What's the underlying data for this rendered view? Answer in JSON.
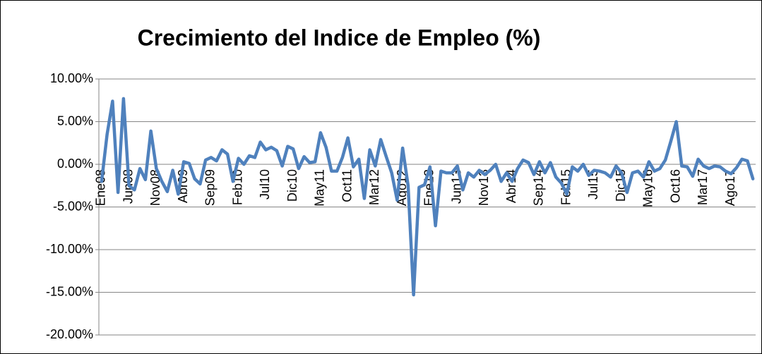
{
  "chart_data": {
    "type": "line",
    "title": "Crecimiento del Indice de Empleo (%)",
    "categories": [
      "Ene08",
      null,
      null,
      null,
      null,
      "Jun08",
      null,
      null,
      null,
      null,
      "Nov08",
      null,
      null,
      null,
      null,
      "Abr09",
      null,
      null,
      null,
      null,
      "Sep09",
      null,
      null,
      null,
      null,
      "Feb10",
      null,
      null,
      null,
      null,
      "Jul10",
      null,
      null,
      null,
      null,
      "Dic10",
      null,
      null,
      null,
      null,
      "May11",
      null,
      null,
      null,
      null,
      "Oct11",
      null,
      null,
      null,
      null,
      "Mar12",
      null,
      null,
      null,
      null,
      "Ago12",
      null,
      null,
      null,
      null,
      "Ene13",
      null,
      null,
      null,
      null,
      "Jun13",
      null,
      null,
      null,
      null,
      "Nov13",
      null,
      null,
      null,
      null,
      "Abr14",
      null,
      null,
      null,
      null,
      "Sep14",
      null,
      null,
      null,
      null,
      "Feb15",
      null,
      null,
      null,
      null,
      "Jul15",
      null,
      null,
      null,
      null,
      "Dic15",
      null,
      null,
      null,
      null,
      "May16",
      null,
      null,
      null,
      null,
      "Oct16",
      null,
      null,
      null,
      null,
      "Mar17",
      null,
      null,
      null,
      null,
      "Ago17",
      null,
      null,
      null,
      null
    ],
    "values": [
      -2,
      3.5,
      7.4,
      -3.3,
      7.7,
      -2.5,
      -3,
      -0.5,
      -1.8,
      3.9,
      -0.5,
      -2,
      -3.2,
      -0.7,
      -3.5,
      0.3,
      0.1,
      -1.7,
      -2.3,
      0.5,
      0.8,
      0.4,
      1.7,
      1.2,
      -2,
      0.7,
      0,
      1,
      0.8,
      2.6,
      1.7,
      2,
      1.6,
      -0.2,
      2.1,
      1.8,
      -0.5,
      0.9,
      0.2,
      0.3,
      3.7,
      2,
      -0.8,
      -0.8,
      0.8,
      3.1,
      -0.3,
      0.6,
      -4,
      1.7,
      -0.2,
      2.9,
      0.9,
      -1,
      -4.2,
      1.9,
      -2.5,
      -15.3,
      -2.7,
      -2.4,
      -0.3,
      -7.2,
      -0.8,
      -1,
      -1,
      -0.2,
      -3,
      -1,
      -1.5,
      -0.7,
      -1.2,
      -0.7,
      0,
      -2,
      -1,
      -2,
      -0.5,
      0.5,
      0.2,
      -1.2,
      0.3,
      -1,
      0.2,
      -1.5,
      -2.2,
      -3.5,
      -0.3,
      -0.8,
      0,
      -1.3,
      -0.7,
      -0.8,
      -1,
      -1.5,
      -0.2,
      -1,
      -3.3,
      -1,
      -0.8,
      -1.5,
      0.3,
      -0.8,
      -0.5,
      0.5,
      2.7,
      5,
      -0.2,
      -0.3,
      -1.4,
      0.6,
      -0.2,
      -0.5,
      -0.2,
      -0.3,
      -0.8,
      -1.1,
      -0.4,
      0.6,
      0.4,
      -1.7
    ],
    "color": "#4f81bd",
    "ylim": [
      -20,
      10
    ],
    "yticks": [
      {
        "value": -20,
        "label": "-20.00%"
      },
      {
        "value": -15,
        "label": "-15.00%"
      },
      {
        "value": -10,
        "label": "-10.00%"
      },
      {
        "value": -5,
        "label": "-5.00%"
      },
      {
        "value": 0,
        "label": "0.00%"
      },
      {
        "value": 5,
        "label": "5.00%"
      },
      {
        "value": 10,
        "label": "10.00%"
      }
    ],
    "grid": true
  }
}
